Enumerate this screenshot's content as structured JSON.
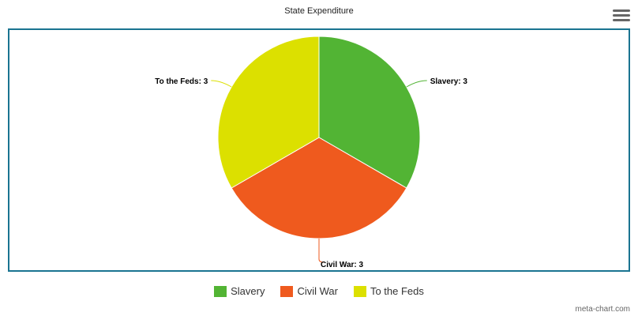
{
  "menu": {
    "icon": "hamburger-menu-icon"
  },
  "credit": "meta-chart.com",
  "chart_data": {
    "type": "pie",
    "title": "State Expenditure",
    "categories": [
      "Slavery",
      "Civil War",
      "To the Feds"
    ],
    "values": [
      3,
      3,
      3
    ],
    "colors": [
      "#52b434",
      "#ef5a1e",
      "#dce000"
    ],
    "data_labels": [
      "Slavery: 3",
      "Civil War: 3",
      "To the Feds: 3"
    ],
    "legend": {
      "position": "bottom",
      "items": [
        "Slavery",
        "Civil War",
        "To the Feds"
      ]
    }
  }
}
